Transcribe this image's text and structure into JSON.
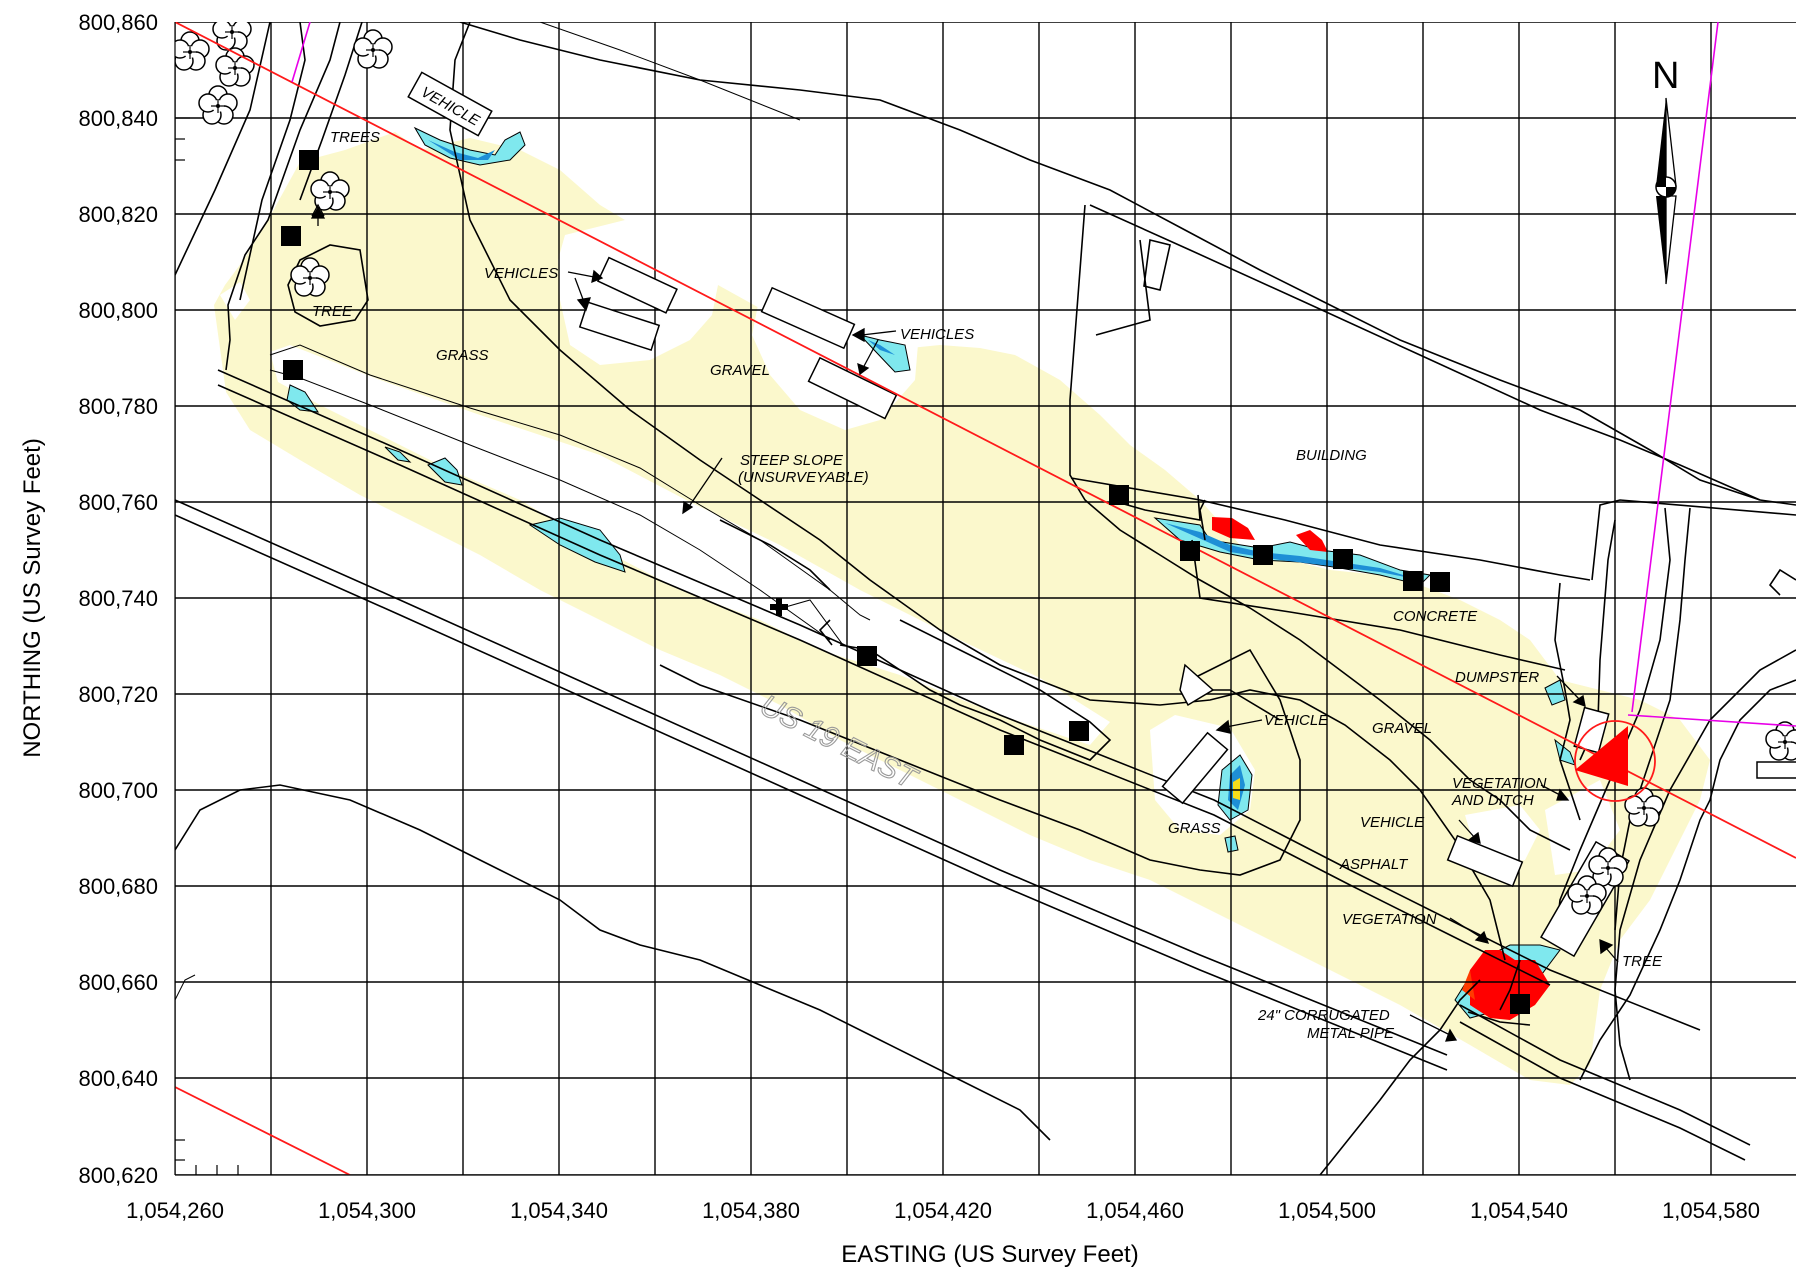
{
  "map": {
    "x_axis": {
      "title": "EASTING (US Survey Feet)",
      "ticks": [
        "1,054,260",
        "1,054,300",
        "1,054,340",
        "1,054,380",
        "1,054,420",
        "1,054,460",
        "1,054,500",
        "1,054,540",
        "1,054,580"
      ]
    },
    "y_axis": {
      "title": "NORTHING (US Survey Feet)",
      "ticks": [
        "800,860",
        "800,840",
        "800,820",
        "800,800",
        "800,780",
        "800,760",
        "800,740",
        "800,720",
        "800,700",
        "800,680",
        "800,660",
        "800,640",
        "800,620"
      ]
    },
    "north_arrow": "N",
    "road_label": "US 19 EAST",
    "labels": {
      "vehicle_top": "VEHICLE",
      "trees": "TREES",
      "tree_left": "TREE",
      "grass_left": "GRASS",
      "vehicles_1": "VEHICLES",
      "vehicles_2": "VEHICLES",
      "gravel_mid": "GRAVEL",
      "steep_1": "STEEP SLOPE",
      "steep_2": "(UNSURVEYABLE)",
      "building": "BUILDING",
      "concrete": "CONCRETE",
      "dumpster": "DUMPSTER",
      "vehicle_mid": "VEHICLE",
      "gravel_right": "GRAVEL",
      "veg_ditch_1": "VEGETATION",
      "veg_ditch_2": "AND DITCH",
      "vehicle_right": "VEHICLE",
      "grass_mid": "GRASS",
      "asphalt": "ASPHALT",
      "vegetation": "VEGETATION",
      "tree_right": "TREE",
      "pipe_1": "24\" CORRUGATED",
      "pipe_2": "METAL PIPE"
    },
    "colors": {
      "survey_area": "#fbf8cc",
      "water_cyan": "#7fe8ee",
      "water_blue": "#1e8fd6",
      "hot_red": "#ff0000",
      "property_line": "#ff1a1a",
      "boundary_magenta": "#e800e8"
    }
  }
}
